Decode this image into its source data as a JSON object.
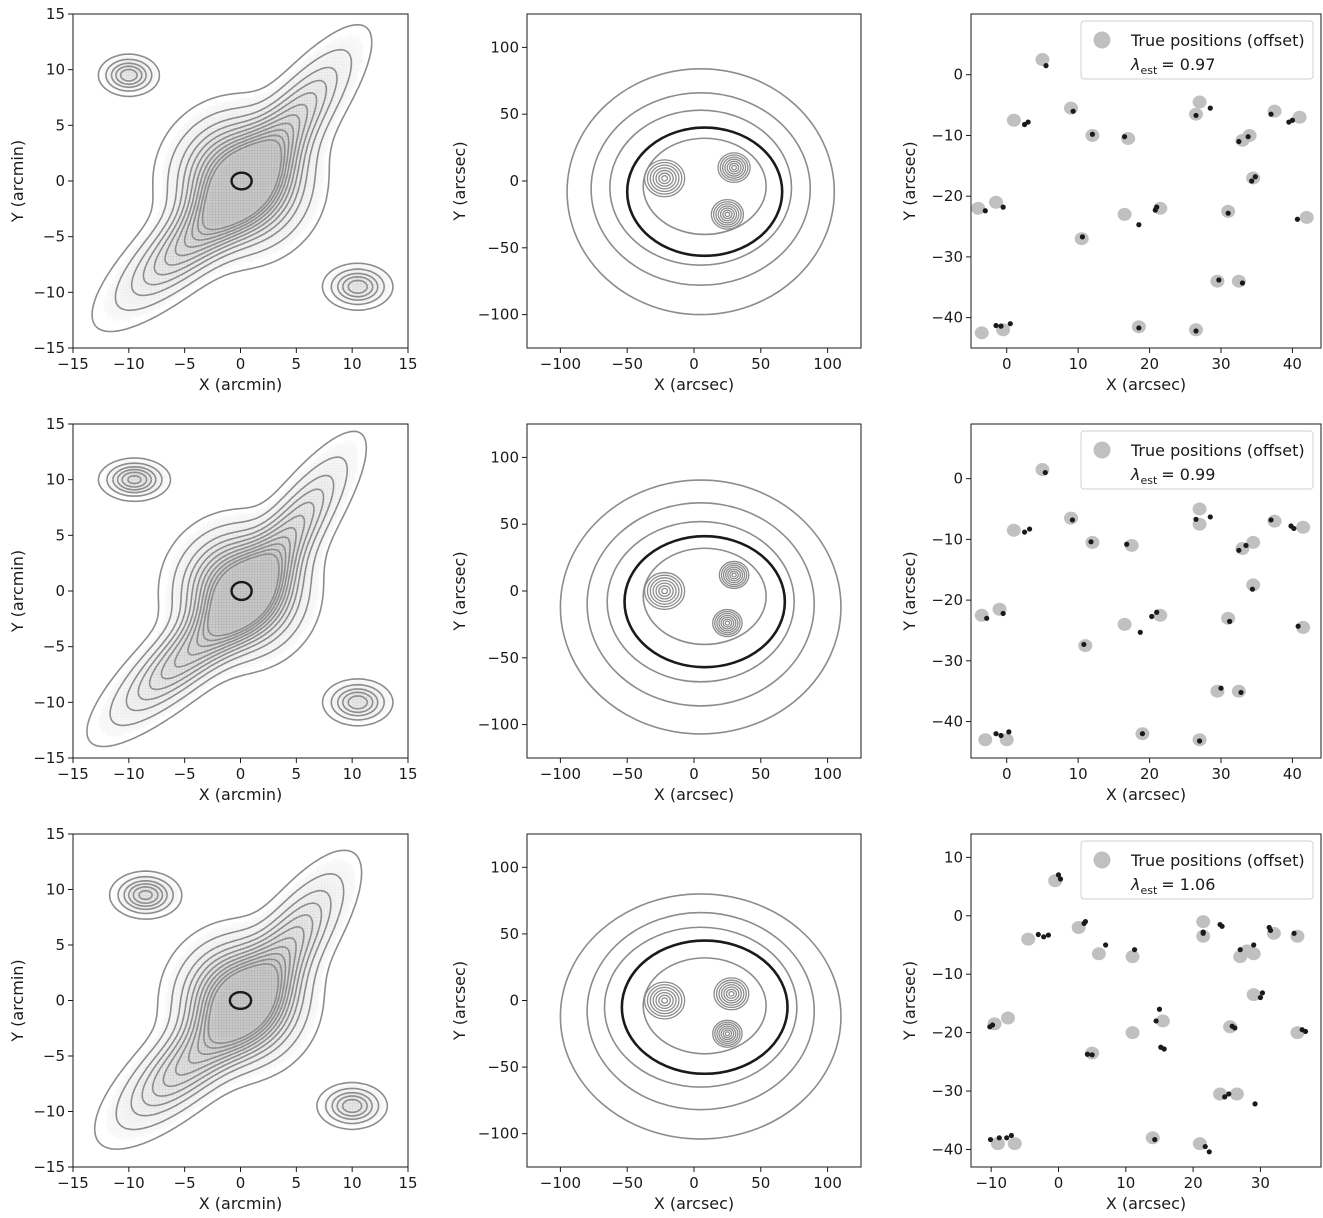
{
  "chart_data": [
    {
      "panel": "row1-left",
      "type": "contour",
      "xlabel": "X (arcmin)",
      "ylabel": "Y (arcmin)",
      "xlim": [
        -15,
        15
      ],
      "ylim": [
        -15,
        15
      ],
      "xticks": [
        -15,
        -10,
        -5,
        0,
        5,
        10,
        15
      ],
      "yticks": [
        -15,
        -10,
        -5,
        0,
        5,
        10,
        15
      ],
      "clusters": [
        {
          "x": 0,
          "y": 0,
          "sx": 3.2,
          "sy": 3.2,
          "amp": 1.0
        },
        {
          "x": -4,
          "y": -5,
          "sx": 5.5,
          "sy": 1.7,
          "rot": 42,
          "amp": 0.55
        },
        {
          "x": 4,
          "y": 4.5,
          "sx": 5.5,
          "sy": 1.6,
          "rot": 52,
          "amp": 0.5
        },
        {
          "x": -10,
          "y": 9.5,
          "sx": 1.3,
          "sy": 0.9,
          "amp": 0.45
        },
        {
          "x": 10.5,
          "y": -9.5,
          "sx": 1.5,
          "sy": 1.0,
          "amp": 0.45
        }
      ],
      "highlight": {
        "x": 0.1,
        "y": 0,
        "rx": 0.9,
        "ry": 0.75
      }
    },
    {
      "panel": "row1-mid",
      "type": "contour",
      "xlabel": "X (arcsec)",
      "ylabel": "Y (arcsec)",
      "xlim": [
        -125,
        125
      ],
      "ylim": [
        -125,
        125
      ],
      "xticks": [
        -100,
        -50,
        0,
        50,
        100
      ],
      "yticks": [
        -100,
        -50,
        0,
        50,
        100
      ],
      "peaks": [
        {
          "x": -22,
          "y": 2,
          "r": 15
        },
        {
          "x": 30,
          "y": 10,
          "r": 12
        },
        {
          "x": 25,
          "y": -25,
          "r": 12
        }
      ],
      "envelope": [
        {
          "rx": 68,
          "ry": 58,
          "cy": -5
        },
        {
          "rx": 82,
          "ry": 72,
          "cy": -6
        },
        {
          "rx": 100,
          "ry": 92,
          "cy": -8
        }
      ],
      "highlight": {
        "cx": 8,
        "cy": -8,
        "rx": 58,
        "ry": 48
      }
    },
    {
      "panel": "row1-right",
      "type": "scatter",
      "xlabel": "X (arcsec)",
      "ylabel": "Y (arcsec)",
      "xlim": [
        -5,
        44
      ],
      "ylim": [
        -45,
        10
      ],
      "xticks": [
        0,
        10,
        20,
        30,
        40
      ],
      "yticks": [
        0,
        -10,
        -20,
        -30,
        -40
      ],
      "legend": {
        "label": "True positions (offset)",
        "lambda_label": "λ",
        "lambda_sub": "est",
        "lambda_value": "= 0.97",
        "position": "top-right"
      },
      "true_positions": [
        [
          5,
          2.5
        ],
        [
          1,
          -7.5
        ],
        [
          9,
          -5.5
        ],
        [
          12,
          -10
        ],
        [
          17,
          -10.5
        ],
        [
          27,
          -4.5
        ],
        [
          26.5,
          -6.5
        ],
        [
          34,
          -10
        ],
        [
          33,
          -10.8
        ],
        [
          37.5,
          -6
        ],
        [
          41,
          -7
        ],
        [
          -4,
          -22
        ],
        [
          -1.5,
          -21
        ],
        [
          16.5,
          -23
        ],
        [
          21.5,
          -22
        ],
        [
          10.5,
          -27
        ],
        [
          31,
          -22.5
        ],
        [
          34.5,
          -17
        ],
        [
          42,
          -23.5
        ],
        [
          29.5,
          -34
        ],
        [
          32.5,
          -34
        ],
        [
          -3.5,
          -42.5
        ],
        [
          -0.5,
          -42
        ],
        [
          18.5,
          -41.5
        ],
        [
          26.5,
          -42
        ]
      ],
      "estimated_positions": [
        [
          5.5,
          1.5
        ],
        [
          2.5,
          -8.2
        ],
        [
          3,
          -7.8
        ],
        [
          9.3,
          -6
        ],
        [
          12,
          -9.8
        ],
        [
          16.5,
          -10.2
        ],
        [
          26.5,
          -6.7
        ],
        [
          28.5,
          -5.5
        ],
        [
          32.5,
          -11
        ],
        [
          33.8,
          -10.2
        ],
        [
          37,
          -6.5
        ],
        [
          40,
          -7.5
        ],
        [
          39.5,
          -7.8
        ],
        [
          -3,
          -22.4
        ],
        [
          -0.5,
          -21.8
        ],
        [
          18.5,
          -24.7
        ],
        [
          21,
          -21.8
        ],
        [
          20.8,
          -22.3
        ],
        [
          31,
          -22.8
        ],
        [
          34.3,
          -17.5
        ],
        [
          34.8,
          -16.8
        ],
        [
          40.7,
          -23.8
        ],
        [
          29.7,
          -33.8
        ],
        [
          33,
          -34.3
        ],
        [
          -1.5,
          -41.3
        ],
        [
          -0.8,
          -41.4
        ],
        [
          0.5,
          -41
        ],
        [
          18.5,
          -41.7
        ],
        [
          26.5,
          -42.2
        ],
        [
          10.6,
          -26.7
        ]
      ]
    },
    {
      "panel": "row2-left",
      "type": "contour",
      "xlabel": "X (arcmin)",
      "ylabel": "Y (arcmin)",
      "xlim": [
        -15,
        15
      ],
      "ylim": [
        -15,
        15
      ],
      "xticks": [
        -15,
        -10,
        -5,
        0,
        5,
        10,
        15
      ],
      "yticks": [
        -15,
        -10,
        -5,
        0,
        5,
        10,
        15
      ],
      "clusters": [
        {
          "x": 0,
          "y": 0,
          "sx": 3.0,
          "sy": 3.0,
          "amp": 1.0
        },
        {
          "x": -4.5,
          "y": -5.5,
          "sx": 5.5,
          "sy": 1.6,
          "rot": 42,
          "amp": 0.55
        },
        {
          "x": 4,
          "y": 4.5,
          "sx": 5.5,
          "sy": 1.5,
          "rot": 55,
          "amp": 0.5
        },
        {
          "x": -9.5,
          "y": 10,
          "sx": 1.5,
          "sy": 0.9,
          "amp": 0.5
        },
        {
          "x": 10.5,
          "y": -10,
          "sx": 1.5,
          "sy": 1.0,
          "amp": 0.45
        }
      ],
      "highlight": {
        "x": 0.1,
        "y": 0,
        "rx": 0.9,
        "ry": 0.8
      }
    },
    {
      "panel": "row2-mid",
      "type": "contour",
      "xlabel": "X (arcsec)",
      "ylabel": "Y (arcsec)",
      "xlim": [
        -125,
        125
      ],
      "ylim": [
        -125,
        125
      ],
      "xticks": [
        -100,
        -50,
        0,
        50,
        100
      ],
      "yticks": [
        -100,
        -50,
        0,
        50,
        100
      ],
      "peaks": [
        {
          "x": -22,
          "y": 0,
          "r": 15
        },
        {
          "x": 30,
          "y": 12,
          "r": 11
        },
        {
          "x": 25,
          "y": -24,
          "r": 11
        }
      ],
      "envelope": [
        {
          "rx": 70,
          "ry": 60,
          "cy": -8
        },
        {
          "rx": 85,
          "ry": 76,
          "cy": -10
        },
        {
          "rx": 105,
          "ry": 95,
          "cy": -12
        }
      ],
      "highlight": {
        "cx": 8,
        "cy": -8,
        "rx": 60,
        "ry": 49
      }
    },
    {
      "panel": "row2-right",
      "type": "scatter",
      "xlabel": "X (arcsec)",
      "ylabel": "Y (arcsec)",
      "xlim": [
        -5,
        44
      ],
      "ylim": [
        -46,
        9
      ],
      "xticks": [
        0,
        10,
        20,
        30,
        40
      ],
      "yticks": [
        0,
        -10,
        -20,
        -30,
        -40
      ],
      "legend": {
        "label": "True positions (offset)",
        "lambda_label": "λ",
        "lambda_sub": "est",
        "lambda_value": "= 0.99",
        "position": "top-right"
      },
      "true_positions": [
        [
          5,
          1.5
        ],
        [
          1,
          -8.5
        ],
        [
          9,
          -6.5
        ],
        [
          12,
          -10.5
        ],
        [
          17.5,
          -11
        ],
        [
          27,
          -5
        ],
        [
          27,
          -7.5
        ],
        [
          34.5,
          -10.5
        ],
        [
          33,
          -11.5
        ],
        [
          37.5,
          -7
        ],
        [
          41.5,
          -8
        ],
        [
          -3.5,
          -22.5
        ],
        [
          -1,
          -21.5
        ],
        [
          16.5,
          -24
        ],
        [
          21.5,
          -22.5
        ],
        [
          11,
          -27.5
        ],
        [
          31,
          -23
        ],
        [
          34.5,
          -17.5
        ],
        [
          41.5,
          -24.5
        ],
        [
          29.5,
          -35
        ],
        [
          32.5,
          -35
        ],
        [
          -3,
          -43
        ],
        [
          0,
          -43
        ],
        [
          19,
          -42
        ],
        [
          27,
          -43
        ]
      ],
      "estimated_positions": [
        [
          5.4,
          1
        ],
        [
          2.5,
          -8.8
        ],
        [
          3.2,
          -8.3
        ],
        [
          9.2,
          -6.8
        ],
        [
          11.8,
          -10.4
        ],
        [
          16.8,
          -10.8
        ],
        [
          26.5,
          -6.7
        ],
        [
          28.5,
          -6.3
        ],
        [
          32.5,
          -11.8
        ],
        [
          33.5,
          -11
        ],
        [
          37,
          -6.8
        ],
        [
          40.2,
          -8.2
        ],
        [
          39.8,
          -7.8
        ],
        [
          -2.8,
          -23
        ],
        [
          -0.5,
          -22.2
        ],
        [
          18.7,
          -25.3
        ],
        [
          21,
          -22
        ],
        [
          20.3,
          -22.7
        ],
        [
          31.2,
          -23.5
        ],
        [
          34.4,
          -18.2
        ],
        [
          40.8,
          -24.3
        ],
        [
          30,
          -34.5
        ],
        [
          32.8,
          -35.2
        ],
        [
          -1.5,
          -42
        ],
        [
          -0.8,
          -42.3
        ],
        [
          0.3,
          -41.7
        ],
        [
          19,
          -42
        ],
        [
          27,
          -43.2
        ],
        [
          10.8,
          -27.3
        ]
      ]
    },
    {
      "panel": "row3-left",
      "type": "contour",
      "xlabel": "X (arcmin)",
      "ylabel": "Y (arcmin)",
      "xlim": [
        -15,
        15
      ],
      "ylim": [
        -15,
        15
      ],
      "xticks": [
        -15,
        -10,
        -5,
        0,
        5,
        10,
        15
      ],
      "yticks": [
        -15,
        -10,
        -5,
        0,
        5,
        10,
        15
      ],
      "clusters": [
        {
          "x": 0,
          "y": 0,
          "sx": 3.0,
          "sy": 3.0,
          "amp": 1.0
        },
        {
          "x": -4.5,
          "y": -5.5,
          "sx": 5.0,
          "sy": 1.8,
          "rot": 42,
          "amp": 0.55
        },
        {
          "x": 4,
          "y": 4.5,
          "sx": 5.0,
          "sy": 1.7,
          "rot": 55,
          "amp": 0.5
        },
        {
          "x": -8.5,
          "y": 9.5,
          "sx": 1.5,
          "sy": 1.0,
          "amp": 0.5
        },
        {
          "x": 10,
          "y": -9.5,
          "sx": 1.5,
          "sy": 1.0,
          "amp": 0.45
        }
      ],
      "highlight": {
        "x": 0,
        "y": 0,
        "rx": 0.95,
        "ry": 0.75
      }
    },
    {
      "panel": "row3-mid",
      "type": "contour",
      "xlabel": "X (arcsec)",
      "ylabel": "Y (arcsec)",
      "xlim": [
        -125,
        125
      ],
      "ylim": [
        -125,
        125
      ],
      "xticks": [
        -100,
        -50,
        0,
        50,
        100
      ],
      "yticks": [
        -100,
        -50,
        0,
        50,
        100
      ],
      "peaks": [
        {
          "x": -22,
          "y": 0,
          "r": 15
        },
        {
          "x": 28,
          "y": 5,
          "r": 13
        },
        {
          "x": 25,
          "y": -25,
          "r": 11
        }
      ],
      "envelope": [
        {
          "rx": 72,
          "ry": 60,
          "cy": -5
        },
        {
          "rx": 85,
          "ry": 74,
          "cy": -8
        },
        {
          "rx": 105,
          "ry": 92,
          "cy": -12
        }
      ],
      "highlight": {
        "cx": 8,
        "cy": -5,
        "rx": 62,
        "ry": 50
      }
    },
    {
      "panel": "row3-right",
      "type": "scatter",
      "xlabel": "X (arcsec)",
      "ylabel": "Y (arcsec)",
      "xlim": [
        -13,
        39
      ],
      "ylim": [
        -43,
        14
      ],
      "xticks": [
        -10,
        0,
        10,
        20,
        30
      ],
      "yticks": [
        10,
        0,
        -10,
        -20,
        -30,
        -40
      ],
      "legend": {
        "label": "True positions (offset)",
        "lambda_label": "λ",
        "lambda_sub": "est",
        "lambda_value": "= 1.06",
        "position": "top-right"
      },
      "true_positions": [
        [
          -0.5,
          6
        ],
        [
          -4.5,
          -4
        ],
        [
          3,
          -2
        ],
        [
          6,
          -6.5
        ],
        [
          11,
          -7
        ],
        [
          21.5,
          -1
        ],
        [
          21.5,
          -3.5
        ],
        [
          28,
          -6
        ],
        [
          27,
          -7
        ],
        [
          29,
          -6.5
        ],
        [
          32,
          -3
        ],
        [
          35.5,
          -3.5
        ],
        [
          -9.5,
          -18.5
        ],
        [
          -7.5,
          -17.5
        ],
        [
          5,
          -23.5
        ],
        [
          11,
          -20
        ],
        [
          15.5,
          -18
        ],
        [
          25.5,
          -19
        ],
        [
          29,
          -13.5
        ],
        [
          35.5,
          -20
        ],
        [
          24,
          -30.5
        ],
        [
          26.5,
          -30.5
        ],
        [
          -9,
          -39
        ],
        [
          -6.5,
          -39
        ],
        [
          14,
          -38
        ],
        [
          21,
          -39
        ]
      ],
      "estimated_positions": [
        [
          0,
          7
        ],
        [
          0.3,
          6.3
        ],
        [
          -3,
          -3.2
        ],
        [
          -2.2,
          -3.6
        ],
        [
          -1.5,
          -3.3
        ],
        [
          3.8,
          -1.3
        ],
        [
          4,
          -1
        ],
        [
          7,
          -5
        ],
        [
          11.3,
          -5.8
        ],
        [
          21.5,
          -2.8
        ],
        [
          21.5,
          -3
        ],
        [
          24,
          -1.5
        ],
        [
          24.3,
          -1.8
        ],
        [
          27,
          -5.8
        ],
        [
          29,
          -5
        ],
        [
          31.3,
          -2
        ],
        [
          31.5,
          -2.5
        ],
        [
          35,
          -3
        ],
        [
          -10.2,
          -19
        ],
        [
          -9.8,
          -18.7
        ],
        [
          4.3,
          -23.7
        ],
        [
          5,
          -23.8
        ],
        [
          15,
          -16
        ],
        [
          14.5,
          -18
        ],
        [
          15.2,
          -22.5
        ],
        [
          15.7,
          -22.8
        ],
        [
          25.8,
          -18.9
        ],
        [
          26.2,
          -19.2
        ],
        [
          30.3,
          -13.2
        ],
        [
          30,
          -14
        ],
        [
          36.2,
          -19.5
        ],
        [
          36.7,
          -19.8
        ],
        [
          24.7,
          -31
        ],
        [
          25.3,
          -30.5
        ],
        [
          29.2,
          -32.2
        ],
        [
          -10.1,
          -38.3
        ],
        [
          -8.8,
          -38
        ],
        [
          -7.7,
          -38
        ],
        [
          -7,
          -37.6
        ],
        [
          14.3,
          -38.3
        ],
        [
          21.8,
          -39.5
        ],
        [
          22.4,
          -40.4
        ]
      ]
    }
  ]
}
